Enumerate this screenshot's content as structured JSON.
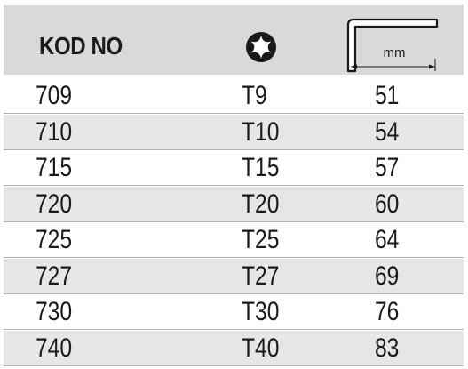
{
  "header": {
    "code_label": "KOD NO",
    "size_icon": "torx-star-icon",
    "length_icon": "hex-key-length-icon",
    "length_unit": "mm"
  },
  "rows": [
    {
      "code": "709",
      "size": "T9",
      "length": "51"
    },
    {
      "code": "710",
      "size": "T10",
      "length": "54"
    },
    {
      "code": "715",
      "size": "T15",
      "length": "57"
    },
    {
      "code": "720",
      "size": "T20",
      "length": "60"
    },
    {
      "code": "725",
      "size": "T25",
      "length": "64"
    },
    {
      "code": "727",
      "size": "T27",
      "length": "69"
    },
    {
      "code": "730",
      "size": "T30",
      "length": "76"
    },
    {
      "code": "740",
      "size": "T40",
      "length": "83"
    }
  ],
  "colors": {
    "header_bg": "#d9d9d9",
    "shaded_row_bg": "#e6e6e6",
    "text": "#1a1a1a"
  }
}
